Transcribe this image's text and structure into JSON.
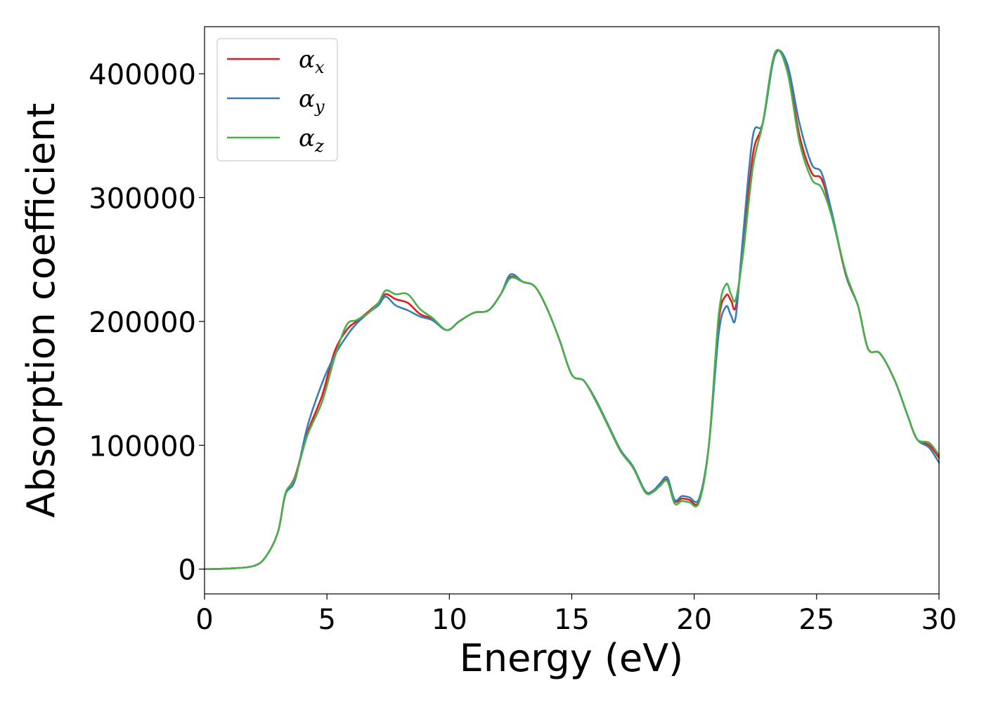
{
  "chart_data": {
    "type": "line",
    "title": "",
    "xlabel": "Energy (eV)",
    "ylabel": "Absorption coefficient",
    "xlim": [
      0,
      30
    ],
    "ylim": [
      -20000,
      438000
    ],
    "xticks": [
      0,
      5,
      10,
      15,
      20,
      25,
      30
    ],
    "xtick_labels": [
      "0",
      "5",
      "10",
      "15",
      "20",
      "25",
      "30"
    ],
    "yticks": [
      0,
      100000,
      200000,
      300000,
      400000
    ],
    "ytick_labels": [
      "0",
      "100000",
      "200000",
      "300000",
      "400000"
    ],
    "grid": false,
    "legend_position": "top-left",
    "series": [
      {
        "name": "αx",
        "legend_base": "α",
        "legend_sub": "x",
        "color": "#e41a1c",
        "x": [
          0,
          1,
          2,
          2.5,
          3,
          3.3,
          3.7,
          4.2,
          4.8,
          5.3,
          5.8,
          6.2,
          6.7,
          7.1,
          7.4,
          7.8,
          8.3,
          8.8,
          9.3,
          9.9,
          10.4,
          11,
          11.6,
          12.1,
          12.5,
          13,
          13.5,
          14,
          14.5,
          15,
          15.5,
          16,
          16.5,
          17,
          17.5,
          18,
          18.3,
          18.6,
          18.9,
          19.2,
          19.5,
          19.8,
          20.2,
          20.6,
          21,
          21.3,
          21.5,
          21.7,
          22,
          22.4,
          22.8,
          23.3,
          23.8,
          24.3,
          24.8,
          25.2,
          25.6,
          26.2,
          26.7,
          27.1,
          27.6,
          28.2,
          28.7,
          29.1,
          29.6,
          30
        ],
        "y": [
          0,
          500,
          2500,
          10000,
          30000,
          60000,
          75000,
          110000,
          140000,
          175000,
          193000,
          200000,
          208000,
          215000,
          222000,
          218000,
          215000,
          206000,
          202000,
          193000,
          200000,
          207000,
          209000,
          222000,
          236000,
          232000,
          228000,
          210000,
          185000,
          157000,
          152000,
          135000,
          115000,
          95000,
          82000,
          63000,
          63000,
          68000,
          72000,
          55000,
          57000,
          56000,
          55000,
          100000,
          200000,
          221000,
          217000,
          212000,
          260000,
          335000,
          360000,
          416000,
          404000,
          350000,
          320000,
          315000,
          288000,
          237000,
          212000,
          178000,
          174000,
          152000,
          125000,
          105000,
          100000,
          90000
        ]
      },
      {
        "name": "αy",
        "legend_base": "α",
        "legend_sub": "y",
        "color": "#377eb8",
        "x": [
          0,
          1,
          2,
          2.5,
          3,
          3.3,
          3.7,
          4.2,
          4.8,
          5.3,
          5.8,
          6.2,
          6.7,
          7.1,
          7.4,
          7.8,
          8.3,
          8.8,
          9.3,
          9.9,
          10.4,
          11,
          11.6,
          12.1,
          12.5,
          13,
          13.5,
          14,
          14.5,
          15,
          15.5,
          16,
          16.5,
          17,
          17.5,
          18,
          18.3,
          18.6,
          18.9,
          19.2,
          19.5,
          19.8,
          20.2,
          20.6,
          21,
          21.3,
          21.5,
          21.7,
          22,
          22.4,
          22.8,
          23.3,
          23.8,
          24.3,
          24.8,
          25.2,
          25.6,
          26.2,
          26.7,
          27.1,
          27.6,
          28.2,
          28.7,
          29.1,
          29.6,
          30
        ],
        "y": [
          0,
          500,
          2500,
          10000,
          30000,
          60000,
          72000,
          115000,
          150000,
          172000,
          188000,
          198000,
          207000,
          213000,
          220000,
          213000,
          209000,
          204000,
          201000,
          193000,
          200000,
          207000,
          209000,
          222000,
          238000,
          232000,
          228000,
          210000,
          185000,
          157000,
          152000,
          136000,
          116000,
          96000,
          83000,
          63000,
          63000,
          69000,
          74000,
          56000,
          59000,
          58000,
          57000,
          100000,
          190000,
          212000,
          205000,
          204000,
          270000,
          350000,
          360000,
          415000,
          408000,
          360000,
          327000,
          320000,
          290000,
          238000,
          212000,
          178000,
          174000,
          152000,
          125000,
          105000,
          98000,
          86000
        ]
      },
      {
        "name": "αz",
        "legend_base": "α",
        "legend_sub": "z",
        "color": "#4daf4a",
        "x": [
          0,
          1,
          2,
          2.5,
          3,
          3.3,
          3.7,
          4.2,
          4.8,
          5.3,
          5.8,
          6.2,
          6.7,
          7.1,
          7.4,
          7.8,
          8.3,
          8.8,
          9.3,
          9.9,
          10.4,
          11,
          11.6,
          12.1,
          12.5,
          13,
          13.5,
          14,
          14.5,
          15,
          15.5,
          16,
          16.5,
          17,
          17.5,
          18,
          18.3,
          18.6,
          18.9,
          19.2,
          19.5,
          19.8,
          20.2,
          20.6,
          21,
          21.3,
          21.5,
          21.7,
          22,
          22.4,
          22.8,
          23.3,
          23.8,
          24.3,
          24.8,
          25.2,
          25.6,
          26.2,
          26.7,
          27.1,
          27.6,
          28.2,
          28.7,
          29.1,
          29.6,
          30
        ],
        "y": [
          0,
          500,
          2500,
          10000,
          30000,
          61000,
          74000,
          108000,
          135000,
          170000,
          197000,
          201000,
          207000,
          215000,
          225000,
          222000,
          222000,
          210000,
          203000,
          193000,
          200000,
          207000,
          209000,
          222000,
          235000,
          232000,
          228000,
          210000,
          185000,
          157000,
          152000,
          135000,
          115000,
          95000,
          82000,
          62000,
          62000,
          67000,
          71000,
          53000,
          55000,
          54000,
          54000,
          100000,
          205000,
          230000,
          222000,
          218000,
          255000,
          325000,
          360000,
          417000,
          402000,
          345000,
          315000,
          308000,
          286000,
          239000,
          212000,
          178000,
          174000,
          152000,
          125000,
          105000,
          102000,
          92000
        ]
      }
    ]
  }
}
